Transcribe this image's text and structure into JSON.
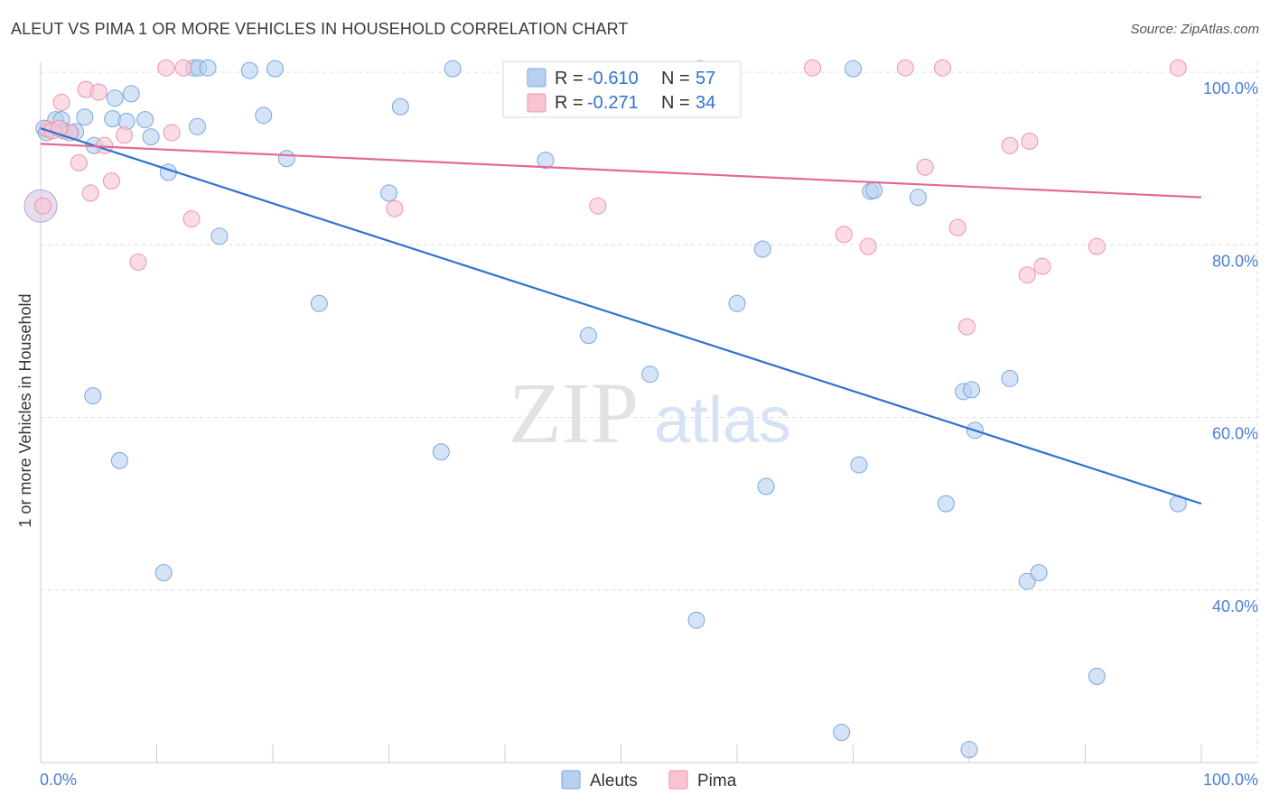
{
  "title": "ALEUT VS PIMA 1 OR MORE VEHICLES IN HOUSEHOLD CORRELATION CHART",
  "source": "Source: ZipAtlas.com",
  "watermark": {
    "zip": "ZIP",
    "atlas": "atlas"
  },
  "colors": {
    "aleut_fill": "#b8d0f0",
    "aleut_stroke": "#7aa6e0",
    "aleut_line": "#2f72d0",
    "pima_fill": "#f8c4d2",
    "pima_stroke": "#eb93ad",
    "pima_line": "#e36a93",
    "tick_text": "#4a7fd4",
    "grid": "#dddddd"
  },
  "chart_data": {
    "type": "scatter",
    "title": "ALEUT VS PIMA 1 OR MORE VEHICLES IN HOUSEHOLD CORRELATION CHART",
    "xlabel": "",
    "ylabel": "1 or more Vehicles in Household",
    "xlim": [
      0,
      100
    ],
    "ylim": [
      20,
      100
    ],
    "x_tick_labels": [
      {
        "value": 0,
        "label": "0.0%"
      },
      {
        "value": 100,
        "label": "100.0%"
      }
    ],
    "y_tick_labels": [
      {
        "value": 100,
        "label": "100.0%"
      },
      {
        "value": 80,
        "label": "80.0%"
      },
      {
        "value": 60,
        "label": "60.0%"
      },
      {
        "value": 40,
        "label": "40.0%"
      }
    ],
    "legend": {
      "position": "top-center",
      "entries": [
        {
          "series": "Aleuts",
          "r_label": "R =",
          "r_value": "-0.610",
          "n_label": "N =",
          "n_value": "57"
        },
        {
          "series": "Pima",
          "r_label": "R =",
          "r_value": "-0.271",
          "n_label": "N =",
          "n_value": "34"
        }
      ]
    },
    "series": [
      {
        "name": "Aleuts",
        "trend": {
          "x0": 0,
          "y0": 93.5,
          "x1": 100,
          "y1": 50.0
        },
        "points": [
          [
            0.3,
            93.5
          ],
          [
            1.3,
            94.5
          ],
          [
            1.8,
            94.5
          ],
          [
            2.6,
            93.0
          ],
          [
            3.8,
            94.8
          ],
          [
            4.6,
            91.5
          ],
          [
            6.2,
            94.6
          ],
          [
            6.4,
            97.0
          ],
          [
            7.4,
            94.3
          ],
          [
            7.8,
            97.5
          ],
          [
            9.0,
            94.5
          ],
          [
            9.5,
            92.5
          ],
          [
            11.0,
            88.4
          ],
          [
            13.2,
            100.5
          ],
          [
            13.5,
            93.7
          ],
          [
            13.6,
            100.5
          ],
          [
            14.4,
            100.5
          ],
          [
            15.4,
            81.0
          ],
          [
            18.0,
            100.2
          ],
          [
            19.2,
            95.0
          ],
          [
            20.2,
            100.4
          ],
          [
            21.2,
            90.0
          ],
          [
            24.0,
            73.2
          ],
          [
            30.0,
            86.0
          ],
          [
            31.0,
            96.0
          ],
          [
            34.5,
            56.0
          ],
          [
            35.5,
            100.4
          ],
          [
            43.5,
            89.8
          ],
          [
            47.2,
            69.5
          ],
          [
            52.5,
            65.0
          ],
          [
            56.5,
            36.5
          ],
          [
            56.8,
            100.4
          ],
          [
            60.0,
            73.2
          ],
          [
            62.2,
            79.5
          ],
          [
            62.5,
            52.0
          ],
          [
            69.0,
            23.5
          ],
          [
            70.0,
            100.4
          ],
          [
            70.5,
            54.5
          ],
          [
            71.5,
            86.2
          ],
          [
            71.8,
            86.3
          ],
          [
            75.6,
            85.5
          ],
          [
            78.0,
            50.0
          ],
          [
            79.5,
            63.0
          ],
          [
            80.0,
            21.5
          ],
          [
            80.2,
            63.2
          ],
          [
            80.5,
            58.5
          ],
          [
            83.5,
            64.5
          ],
          [
            85.0,
            41.0
          ],
          [
            86.0,
            42.0
          ],
          [
            91.0,
            30.0
          ],
          [
            98.0,
            50.0
          ],
          [
            4.5,
            62.5
          ],
          [
            6.8,
            55.0
          ],
          [
            10.6,
            42.0
          ],
          [
            0.5,
            93.0
          ],
          [
            2.0,
            93.2
          ],
          [
            3.0,
            93.1
          ]
        ]
      },
      {
        "name": "Pima",
        "trend": {
          "x0": 0,
          "y0": 91.7,
          "x1": 100,
          "y1": 85.5
        },
        "points": [
          [
            0.6,
            93.4
          ],
          [
            1.0,
            93.2
          ],
          [
            1.8,
            96.5
          ],
          [
            2.5,
            93.0
          ],
          [
            3.3,
            89.5
          ],
          [
            3.9,
            98.0
          ],
          [
            4.3,
            86.0
          ],
          [
            5.0,
            97.7
          ],
          [
            5.5,
            91.5
          ],
          [
            6.1,
            87.4
          ],
          [
            7.2,
            92.7
          ],
          [
            8.4,
            78.0
          ],
          [
            10.8,
            100.5
          ],
          [
            11.3,
            93.0
          ],
          [
            12.3,
            100.5
          ],
          [
            13.0,
            83.0
          ],
          [
            30.5,
            84.2
          ],
          [
            48.0,
            84.5
          ],
          [
            66.5,
            100.5
          ],
          [
            69.2,
            81.2
          ],
          [
            71.3,
            79.8
          ],
          [
            74.5,
            100.5
          ],
          [
            76.2,
            89.0
          ],
          [
            77.7,
            100.5
          ],
          [
            79.8,
            70.5
          ],
          [
            79.0,
            82.0
          ],
          [
            83.5,
            91.5
          ],
          [
            85.2,
            92.0
          ],
          [
            85.0,
            76.5
          ],
          [
            86.3,
            77.5
          ],
          [
            91.0,
            79.8
          ],
          [
            98.0,
            100.5
          ],
          [
            0.2,
            84.5
          ],
          [
            1.6,
            93.5
          ]
        ]
      }
    ]
  },
  "bottom_legend": [
    {
      "series": "Aleuts",
      "label": "Aleuts"
    },
    {
      "series": "Pima",
      "label": "Pima"
    }
  ]
}
